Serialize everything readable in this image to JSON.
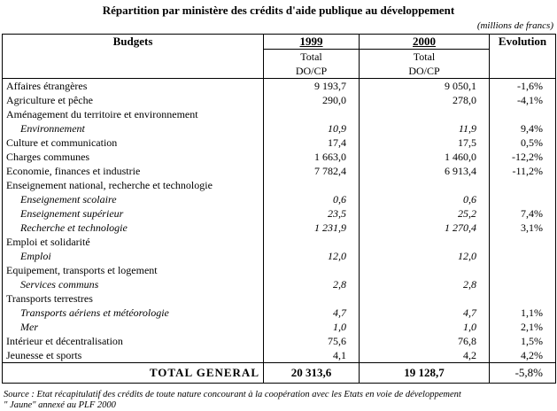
{
  "title": "Répartition par ministère des crédits d'aide publique au développement",
  "unit": "(millions de francs)",
  "header": {
    "budgets": "Budgets",
    "y1999": "1999",
    "y2000": "2000",
    "evolution": "Evolution",
    "total": "Total",
    "docp": "DO/CP"
  },
  "rows": [
    {
      "label": "Affaires étrangères",
      "v1999": "9 193,7",
      "v2000": "9 050,1",
      "evo": "-1,6%",
      "sub": false
    },
    {
      "label": "Agriculture et pêche",
      "v1999": "290,0",
      "v2000": "278,0",
      "evo": "-4,1%",
      "sub": false
    },
    {
      "label": "Aménagement du territoire et environnement",
      "v1999": "",
      "v2000": "",
      "evo": "",
      "sub": false
    },
    {
      "label": "Environnement",
      "v1999": "10,9",
      "v2000": "11,9",
      "evo": "9,4%",
      "sub": true
    },
    {
      "label": "Culture et communication",
      "v1999": "17,4",
      "v2000": "17,5",
      "evo": "0,5%",
      "sub": false
    },
    {
      "label": "Charges communes",
      "v1999": "1 663,0",
      "v2000": "1 460,0",
      "evo": "-12,2%",
      "sub": false
    },
    {
      "label": "Economie, finances et industrie",
      "v1999": "7 782,4",
      "v2000": "6 913,4",
      "evo": "-11,2%",
      "sub": false
    },
    {
      "label": "Enseignement national, recherche et technologie",
      "v1999": "",
      "v2000": "",
      "evo": "",
      "sub": false
    },
    {
      "label": "Enseignement scolaire",
      "v1999": "0,6",
      "v2000": "0,6",
      "evo": "",
      "sub": true
    },
    {
      "label": "Enseignement supérieur",
      "v1999": "23,5",
      "v2000": "25,2",
      "evo": "7,4%",
      "sub": true
    },
    {
      "label": "Recherche et technologie",
      "v1999": "1 231,9",
      "v2000": "1 270,4",
      "evo": "3,1%",
      "sub": true
    },
    {
      "label": "Emploi et solidarité",
      "v1999": "",
      "v2000": "",
      "evo": "",
      "sub": false
    },
    {
      "label": "Emploi",
      "v1999": "12,0",
      "v2000": "12,0",
      "evo": "",
      "sub": true
    },
    {
      "label": "Equipement, transports et logement",
      "v1999": "",
      "v2000": "",
      "evo": "",
      "sub": false
    },
    {
      "label": "Services communs",
      "v1999": "2,8",
      "v2000": "2,8",
      "evo": "",
      "sub": true
    },
    {
      "label": "Transports terrestres",
      "v1999": "",
      "v2000": "",
      "evo": "",
      "sub": false
    },
    {
      "label": "Transports aériens et météorologie",
      "v1999": "4,7",
      "v2000": "4,7",
      "evo": "1,1%",
      "sub": true
    },
    {
      "label": "Mer",
      "v1999": "1,0",
      "v2000": "1,0",
      "evo": "2,1%",
      "sub": true
    },
    {
      "label": "Intérieur et décentralisation",
      "v1999": "75,6",
      "v2000": "76,8",
      "evo": "1,5%",
      "sub": false
    },
    {
      "label": "Jeunesse et sports",
      "v1999": "4,1",
      "v2000": "4,2",
      "evo": "4,2%",
      "sub": false
    }
  ],
  "total": {
    "label": "TOTAL GENERAL",
    "v1999": "20 313,6",
    "v2000": "19 128,7",
    "evo": "-5,8%"
  },
  "source": [
    "Source : Etat récapitulatif des crédits de toute nature concourant à la coopération avec les  Etats en voie de développement",
    "\" Jaune\" annexé au PLF 2000"
  ]
}
